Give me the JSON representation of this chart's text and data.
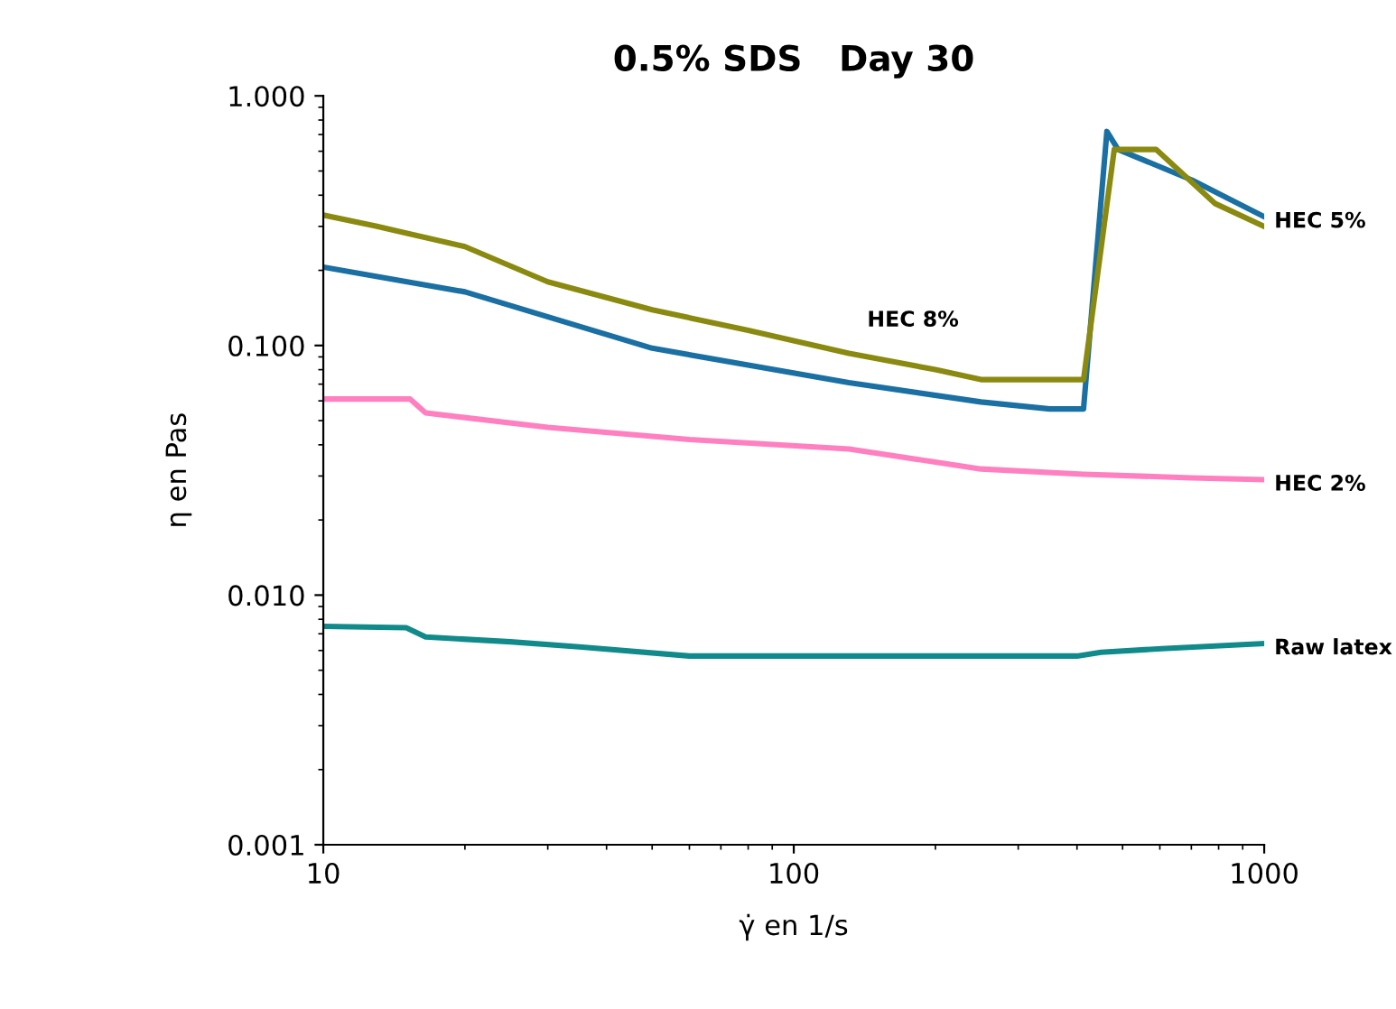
{
  "chart_data": {
    "type": "line",
    "title": "0.5% SDS   Day 30",
    "xlabel": "γ̇ en 1/s",
    "ylabel": "η en Pas",
    "log": "xy",
    "grid": false,
    "legend": false,
    "marker": "none",
    "line_style": "solid",
    "annotations": [
      "HEC 8%"
    ],
    "xlim": [
      10,
      1000
    ],
    "xticks": [
      10,
      100,
      1000
    ],
    "ylim": [
      0.001,
      1
    ],
    "yticks": [
      {
        "value": 0.001,
        "label": "0.001"
      },
      {
        "value": 0.01,
        "label": "0.010"
      },
      {
        "value": 0.1,
        "label": "0.100"
      },
      {
        "value": 1,
        "label": "1.000"
      }
    ],
    "series": [
      {
        "name": "Raw latex",
        "color": "#108a8a",
        "x": [
          10,
          15,
          16.5,
          25,
          35,
          60,
          400,
          450,
          605,
          1000
        ],
        "values": [
          0.0075,
          0.0074,
          0.0068,
          0.0065,
          0.0062,
          0.0057,
          0.0057,
          0.0059,
          0.0061,
          0.0064
        ]
      },
      {
        "name": "HEC 2%",
        "color": "#ff80c0",
        "x": [
          10,
          15.3,
          16.5,
          30,
          60,
          131,
          250,
          413,
          700,
          1000
        ],
        "values": [
          0.061,
          0.061,
          0.0537,
          0.047,
          0.042,
          0.0385,
          0.032,
          0.0305,
          0.0295,
          0.029
        ]
      },
      {
        "name": "HEC 5%",
        "color": "#1a6fa3",
        "x": [
          10,
          20,
          50,
          131,
          250,
          350,
          413,
          463,
          489,
          702,
          1000
        ],
        "values": [
          0.206,
          0.164,
          0.0975,
          0.071,
          0.0594,
          0.0557,
          0.0557,
          0.72,
          0.61,
          0.46,
          0.328
        ]
      },
      {
        "color": "#8a8a10",
        "x": [
          10,
          13,
          20,
          30,
          50,
          80,
          131,
          200,
          250,
          413,
          480,
          589,
          787,
          1000
        ],
        "values": [
          0.333,
          0.3,
          0.249,
          0.18,
          0.139,
          0.115,
          0.093,
          0.08,
          0.073,
          0.073,
          0.61,
          0.61,
          0.37,
          0.3
        ]
      }
    ]
  }
}
